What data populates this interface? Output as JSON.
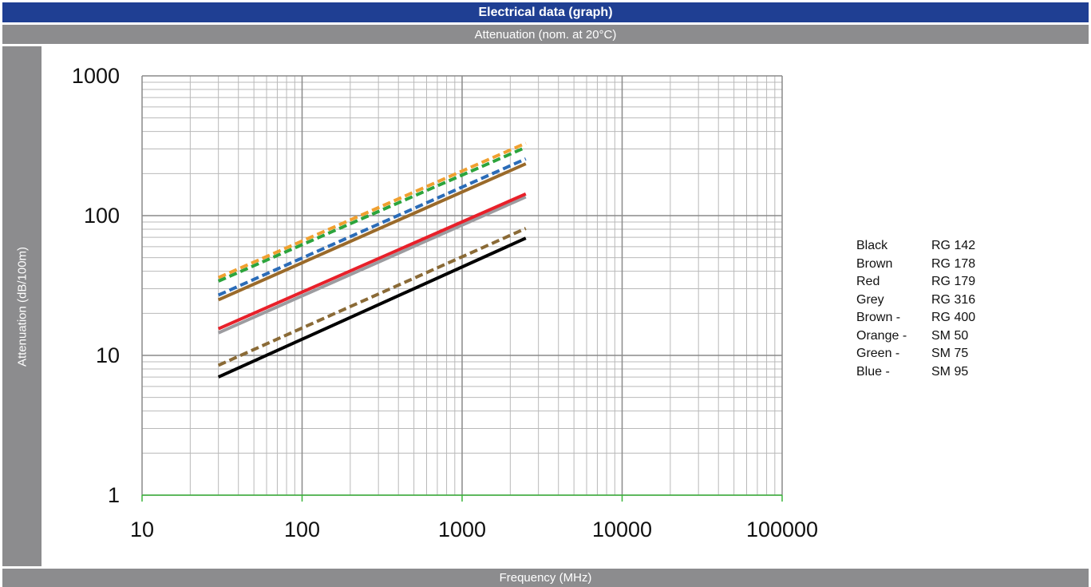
{
  "header": {
    "title": "Electrical data (graph)",
    "subtitle": "Attenuation (nom. at 20°C)"
  },
  "chart_data": {
    "type": "line",
    "xlabel": "Frequency (MHz)",
    "ylabel": "Attenuation (dB/100m)",
    "x_scale": "log",
    "y_scale": "log",
    "xlim": [
      10,
      100000
    ],
    "ylim": [
      1,
      1000
    ],
    "x_ticks": [
      "10",
      "100",
      "1000",
      "10000",
      "100000"
    ],
    "y_ticks": [
      "1",
      "10",
      "100",
      "1000"
    ],
    "grid": true,
    "legend_position": "right",
    "series": [
      {
        "name": "RG 142",
        "legend_color": "Black",
        "color": "#000000",
        "dashed": false,
        "x": [
          30,
          2500
        ],
        "y": [
          7.0,
          69
        ]
      },
      {
        "name": "RG 178",
        "legend_color": "Brown",
        "color": "#9a6a2a",
        "dashed": false,
        "x": [
          30,
          2500
        ],
        "y": [
          25,
          235
        ]
      },
      {
        "name": "RG 179",
        "legend_color": "Red",
        "color": "#e8202a",
        "dashed": false,
        "x": [
          30,
          2500
        ],
        "y": [
          15.5,
          143
        ]
      },
      {
        "name": "RG 316",
        "legend_color": "Grey",
        "color": "#9c9ca0",
        "dashed": false,
        "x": [
          30,
          2500
        ],
        "y": [
          14.5,
          136
        ]
      },
      {
        "name": "RG 400",
        "legend_color": "Brown -",
        "color": "#8a6a36",
        "dashed": true,
        "x": [
          30,
          2500
        ],
        "y": [
          8.5,
          81
        ]
      },
      {
        "name": "SM 50",
        "legend_color": "Orange -",
        "color": "#f0a030",
        "dashed": true,
        "x": [
          30,
          2500
        ],
        "y": [
          36,
          330
        ]
      },
      {
        "name": "SM 75",
        "legend_color": "Green -",
        "color": "#2ca43c",
        "dashed": true,
        "x": [
          30,
          2500
        ],
        "y": [
          34,
          308
        ]
      },
      {
        "name": "SM 95",
        "legend_color": "Blue -",
        "color": "#2b6cb8",
        "dashed": true,
        "x": [
          30,
          2500
        ],
        "y": [
          27,
          255
        ]
      }
    ]
  }
}
